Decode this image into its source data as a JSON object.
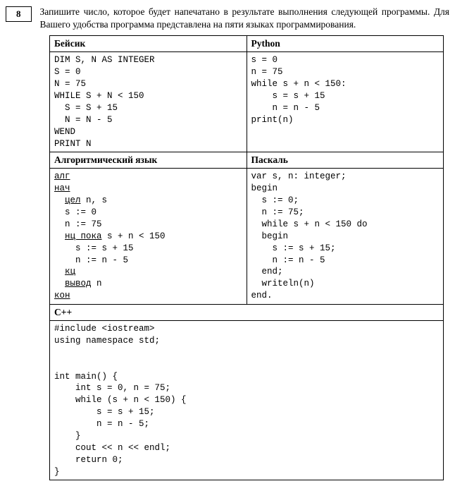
{
  "question": {
    "number": "8",
    "text": "Запишите число, которое будет напечатано в результате выполнения следующей программы. Для Вашего удобства программа представлена на пяти языках программирования."
  },
  "langs": {
    "basic": "Бейсик",
    "python": "Python",
    "alg": "Алгоритмический язык",
    "pascal": "Паскаль",
    "cpp": "С++"
  },
  "code": {
    "basic": "DIM S, N AS INTEGER\nS = 0\nN = 75\nWHILE S + N < 150\n  S = S + 15\n  N = N - 5\nWEND\nPRINT N",
    "python": "s = 0\nn = 75\nwhile s + n < 150:\n    s = s + 15\n    n = n - 5\nprint(n)",
    "alg_lines": [
      {
        "t": "алг",
        "u": true,
        "ind": 0
      },
      {
        "t": "нач",
        "u": true,
        "ind": 0
      },
      {
        "t": "цел",
        "u": true,
        "ind": 1,
        "tail": " n, s"
      },
      {
        "t": "s := 0",
        "u": false,
        "ind": 1
      },
      {
        "t": "n := 75",
        "u": false,
        "ind": 1
      },
      {
        "t": "нц пока",
        "u": true,
        "ind": 1,
        "tail": " s + n < 150"
      },
      {
        "t": "s := s + 15",
        "u": false,
        "ind": 2
      },
      {
        "t": "n := n - 5",
        "u": false,
        "ind": 2
      },
      {
        "t": "кц",
        "u": true,
        "ind": 1
      },
      {
        "t": "вывод",
        "u": true,
        "ind": 1,
        "tail": " n"
      },
      {
        "t": "кон",
        "u": true,
        "ind": 0
      }
    ],
    "pascal": "var s, n: integer;\nbegin\n  s := 0;\n  n := 75;\n  while s + n < 150 do\n  begin\n    s := s + 15;\n    n := n - 5\n  end;\n  writeln(n)\nend.",
    "cpp": "#include <iostream>\nusing namespace std;\n\n\nint main() {\n    int s = 0, n = 75;\n    while (s + n < 150) {\n        s = s + 15;\n        n = n - 5;\n    }\n    cout << n << endl;\n    return 0;\n}"
  }
}
